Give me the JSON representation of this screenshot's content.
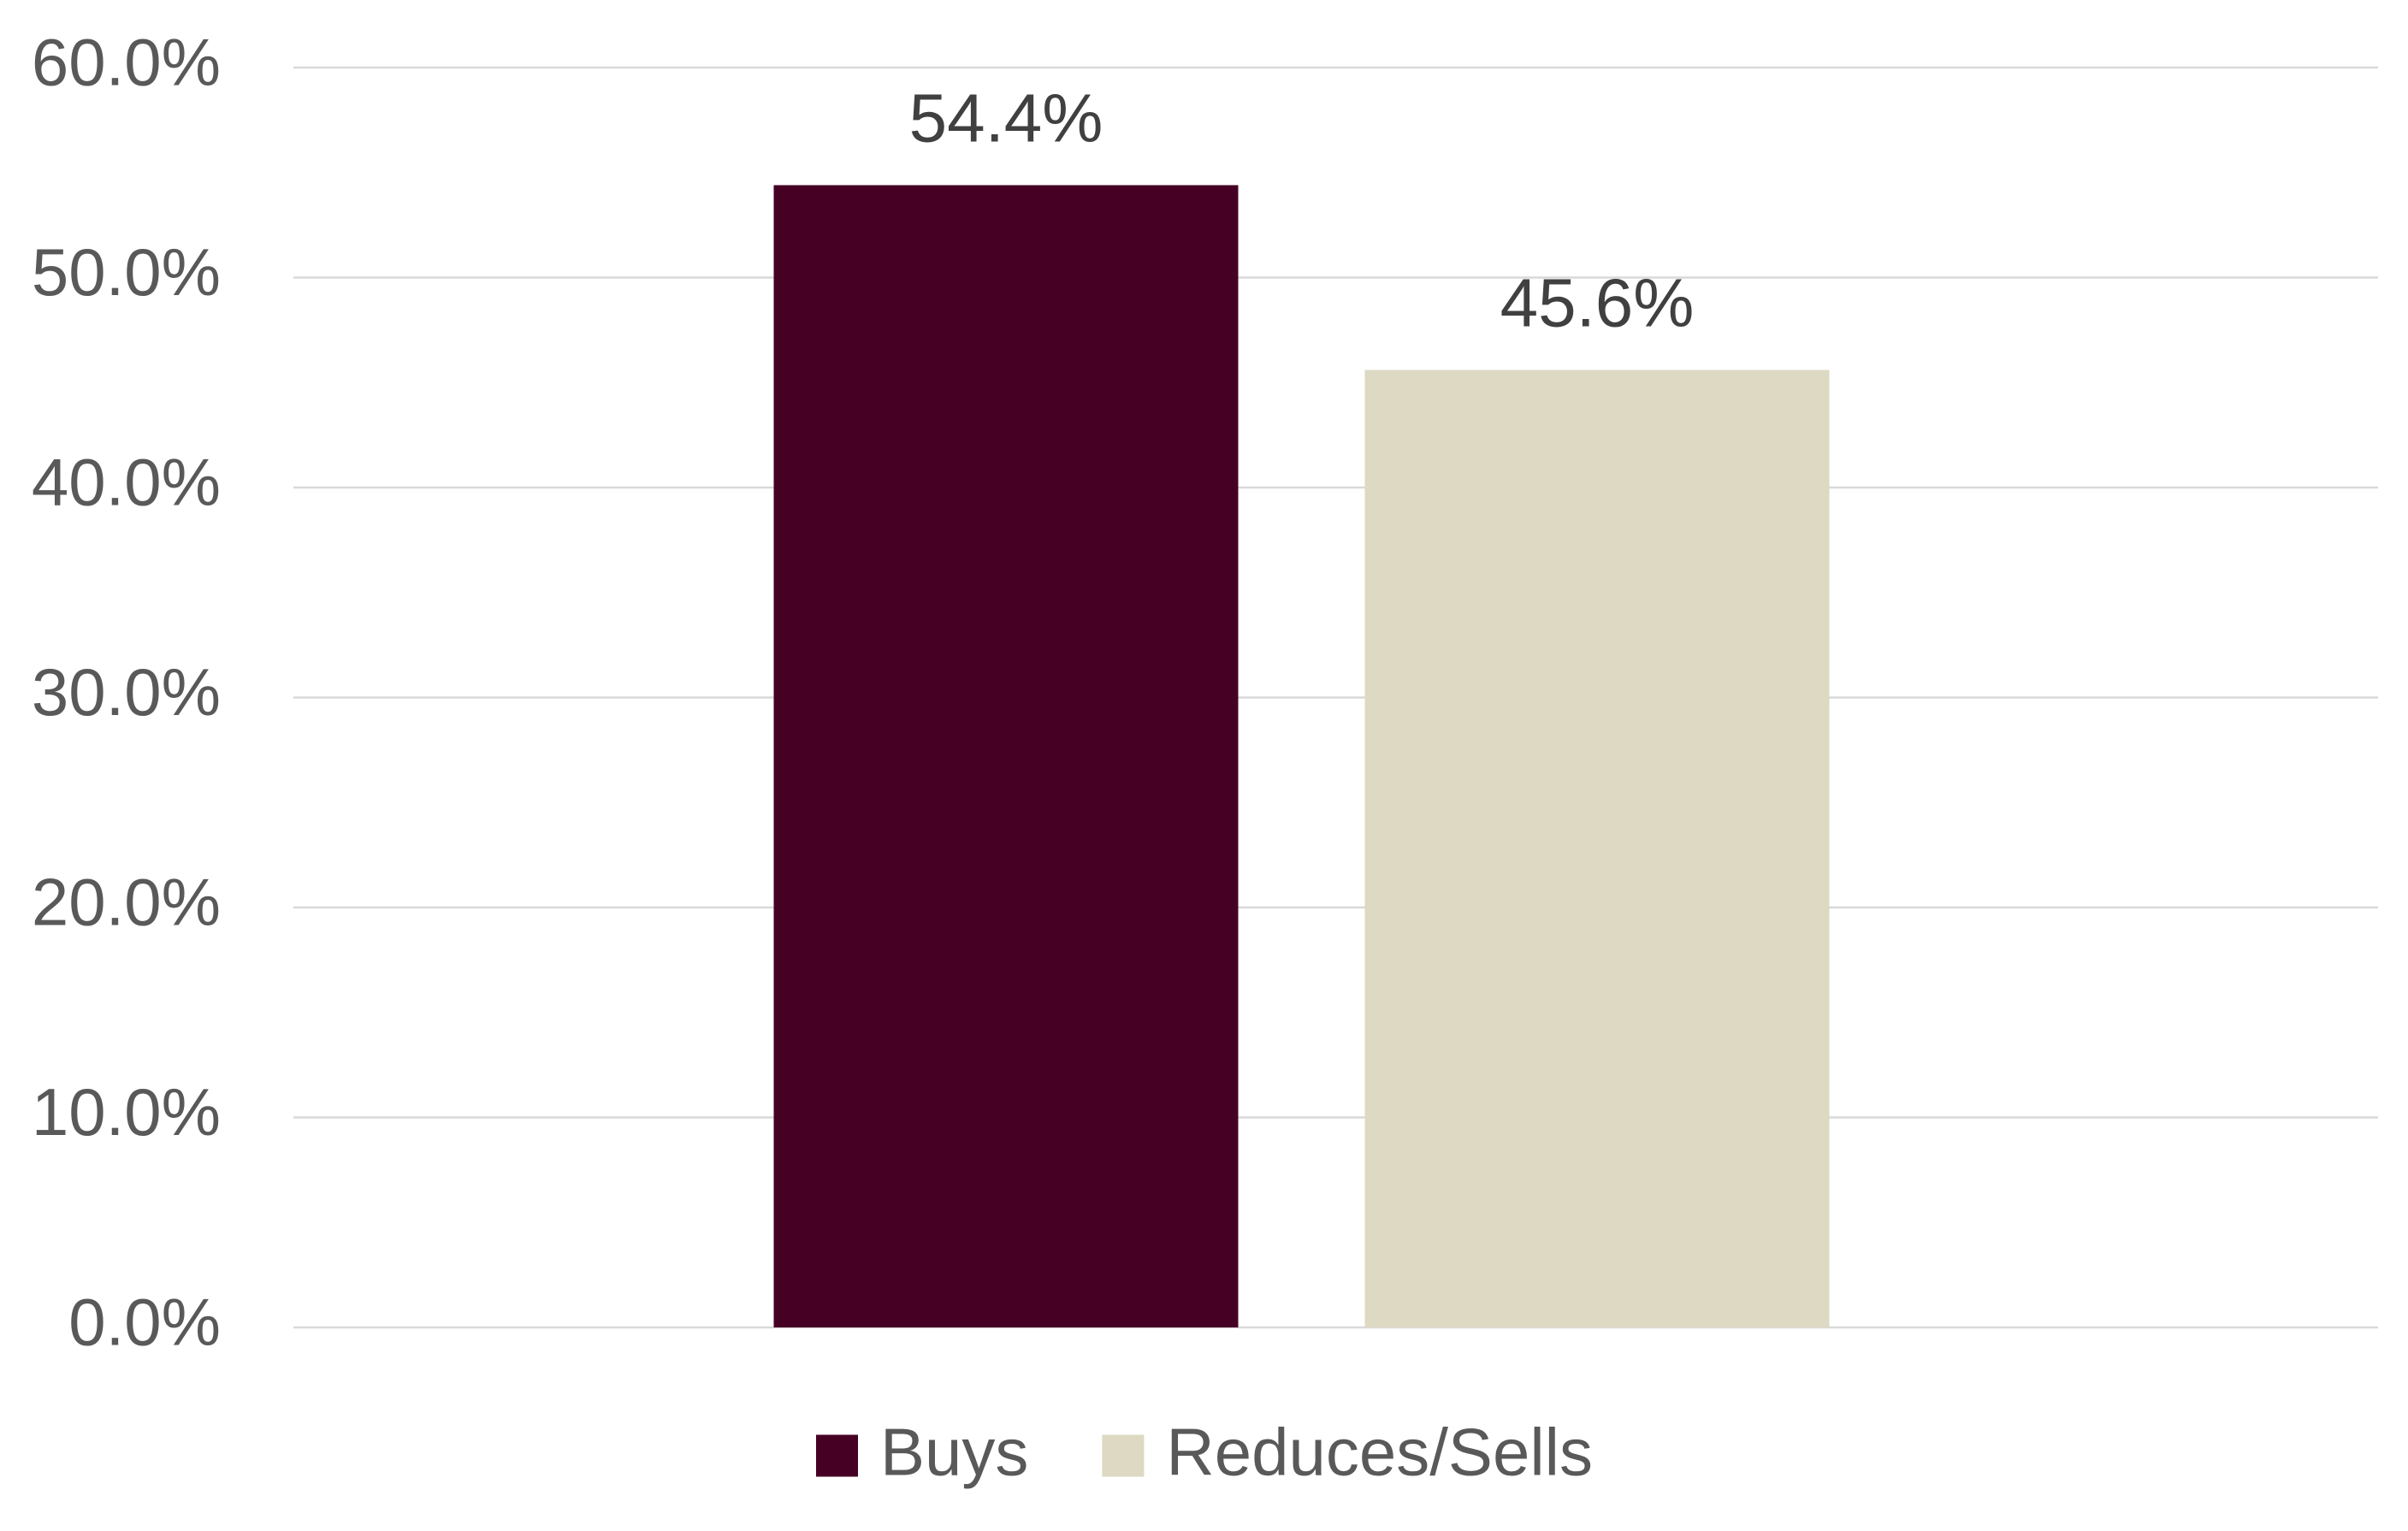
{
  "chart_data": {
    "type": "bar",
    "categories": [
      null
    ],
    "series": [
      {
        "name": "Buys",
        "color": "#450024",
        "values": [
          54.4
        ],
        "value_labels": [
          "54.4%"
        ]
      },
      {
        "name": "Reduces/Sells",
        "color": "#ddd9c3",
        "values": [
          45.6
        ],
        "value_labels": [
          "45.6%"
        ]
      }
    ],
    "ylim": [
      0,
      60
    ],
    "yticks": [
      {
        "value": 0,
        "label": "0.0%"
      },
      {
        "value": 10,
        "label": "10.0%"
      },
      {
        "value": 20,
        "label": "20.0%"
      },
      {
        "value": 30,
        "label": "30.0%"
      },
      {
        "value": 40,
        "label": "40.0%"
      },
      {
        "value": 50,
        "label": "50.0%"
      },
      {
        "value": 60,
        "label": "60.0%"
      }
    ],
    "grid": true,
    "legend": "bottom"
  }
}
